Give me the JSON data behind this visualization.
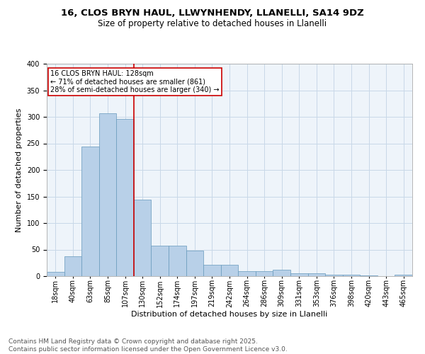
{
  "title1": "16, CLOS BRYN HAUL, LLWYNHENDY, LLANELLI, SA14 9DZ",
  "title2": "Size of property relative to detached houses in Llanelli",
  "xlabel": "Distribution of detached houses by size in Llanelli",
  "ylabel": "Number of detached properties",
  "categories": [
    "18sqm",
    "40sqm",
    "63sqm",
    "85sqm",
    "107sqm",
    "130sqm",
    "152sqm",
    "174sqm",
    "197sqm",
    "219sqm",
    "242sqm",
    "264sqm",
    "286sqm",
    "309sqm",
    "331sqm",
    "353sqm",
    "376sqm",
    "398sqm",
    "420sqm",
    "443sqm",
    "465sqm"
  ],
  "values": [
    8,
    38,
    244,
    307,
    296,
    144,
    57,
    57,
    48,
    21,
    21,
    9,
    9,
    12,
    5,
    5,
    3,
    3,
    1,
    0,
    3
  ],
  "bar_color": "#b8d0e8",
  "bar_edge_color": "#6699bb",
  "vline_x_idx": 5,
  "vline_color": "#cc0000",
  "annotation_text": "16 CLOS BRYN HAUL: 128sqm\n← 71% of detached houses are smaller (861)\n28% of semi-detached houses are larger (340) →",
  "annotation_box_color": "#cc0000",
  "ylim": [
    0,
    400
  ],
  "yticks": [
    0,
    50,
    100,
    150,
    200,
    250,
    300,
    350,
    400
  ],
  "grid_color": "#c8d8e8",
  "bg_color": "#eef4fa",
  "footer": "Contains HM Land Registry data © Crown copyright and database right 2025.\nContains public sector information licensed under the Open Government Licence v3.0.",
  "title_fontsize": 9.5,
  "subtitle_fontsize": 8.5,
  "axis_label_fontsize": 8,
  "tick_fontsize": 7,
  "annotation_fontsize": 7,
  "footer_fontsize": 6.5
}
